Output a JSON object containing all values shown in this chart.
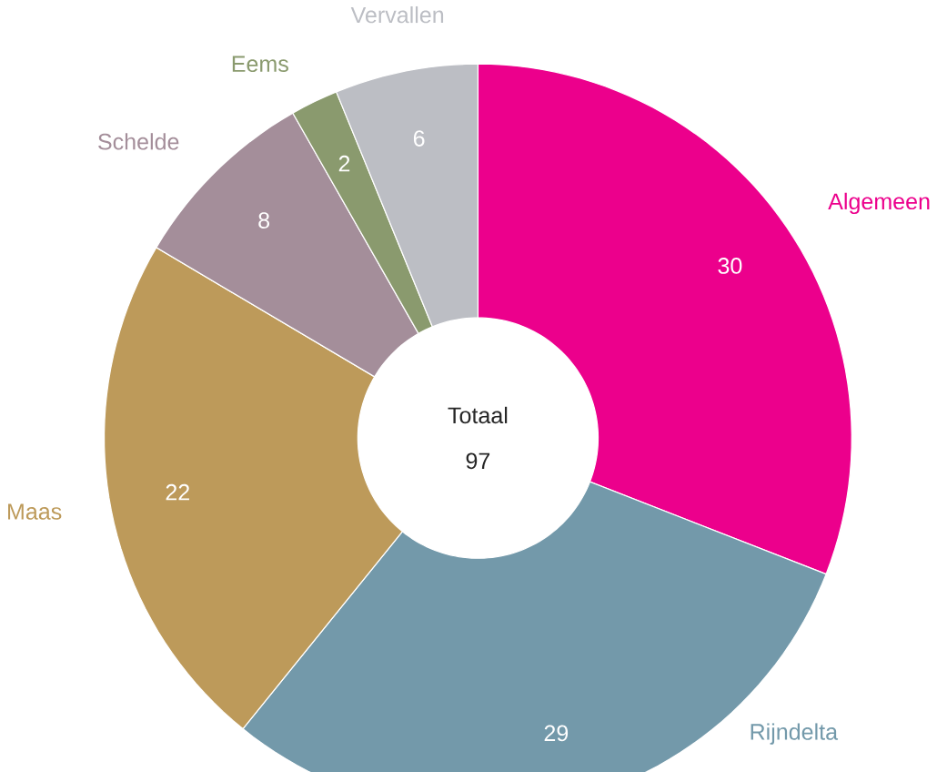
{
  "chart_data": {
    "type": "donut",
    "categories": [
      "Algemeen",
      "Rijndelta",
      "Maas",
      "Schelde",
      "Eems",
      "Vervallen"
    ],
    "values": [
      30,
      29,
      22,
      8,
      2,
      6
    ],
    "colors": [
      "#ec008c",
      "#7399aa",
      "#bd9a5a",
      "#a48e9a",
      "#8a9a6e",
      "#bcbec4"
    ],
    "data_labels": true,
    "annotations": [
      "Totaal",
      "97"
    ]
  }
}
